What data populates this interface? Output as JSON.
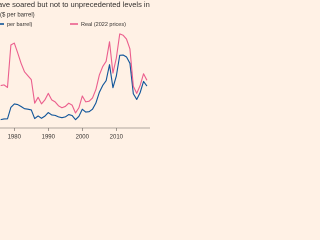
{
  "chart_data": {
    "type": "line",
    "title": "ave soared but not to unprecedented levels in real terr",
    "subtitle": "($ per barrel)",
    "x": [
      1976,
      1977,
      1978,
      1979,
      1980,
      1981,
      1982,
      1983,
      1984,
      1985,
      1986,
      1987,
      1988,
      1989,
      1990,
      1991,
      1992,
      1993,
      1994,
      1995,
      1996,
      1997,
      1998,
      1999,
      2000,
      2001,
      2002,
      2003,
      2004,
      2005,
      2006,
      2007,
      2008,
      2009,
      2010,
      2011,
      2012,
      2013,
      2014,
      2015,
      2016,
      2017,
      2018,
      2019
    ],
    "series": [
      {
        "name": "per barrel)",
        "color": "#0f5499",
        "values": [
          12.8,
          13.9,
          14,
          31.6,
          36.8,
          35.9,
          32.9,
          29.6,
          28.8,
          27.6,
          14.4,
          18.4,
          14.9,
          18.2,
          23.7,
          20,
          19.3,
          17,
          15.8,
          17,
          20.6,
          19.1,
          12.7,
          17.9,
          28.7,
          24.4,
          25,
          28.8,
          38.3,
          54.5,
          65.1,
          72.4,
          97,
          61.7,
          79.5,
          111.3,
          111.7,
          108.7,
          99,
          52.4,
          43.7,
          54.2,
          71.3,
          64.2
        ]
      },
      {
        "name": "Real (2022 prices)",
        "color": "#eb5e8d",
        "values": [
          65,
          66,
          62,
          127,
          130,
          115,
          99,
          86,
          80,
          74,
          38,
          47,
          37,
          43,
          53,
          43,
          40,
          34,
          31,
          33,
          38,
          35,
          23,
          31,
          49,
          40,
          41,
          46,
          59,
          81,
          94,
          102,
          132,
          84,
          107,
          144,
          142,
          136,
          121,
          64,
          53,
          65,
          83,
          73
        ]
      }
    ],
    "xlim": [
      1975.8,
      2019.9
    ],
    "xticks": [
      1980,
      1990,
      2000,
      2010
    ],
    "ylim": [
      0,
      150
    ]
  }
}
